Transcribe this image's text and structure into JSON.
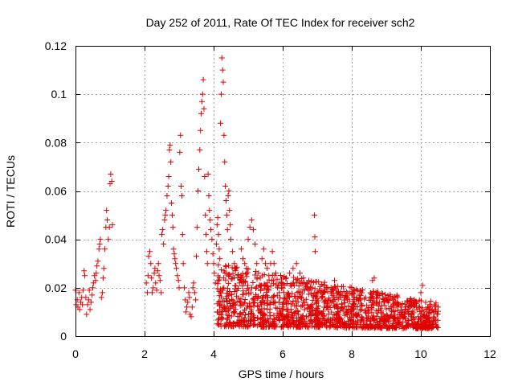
{
  "chart_data": {
    "type": "scatter",
    "title": "Day 252 of 2011, Rate Of TEC Index for receiver sch2",
    "xlabel": "GPS time / hours",
    "ylabel": "ROTI / TECUs",
    "xlim": [
      0,
      12
    ],
    "ylim": [
      0,
      0.12
    ],
    "xticks": [
      0,
      2,
      4,
      6,
      8,
      10,
      12
    ],
    "yticks": [
      0,
      0.02,
      0.04,
      0.06,
      0.08,
      0.1,
      0.12
    ],
    "xtick_labels": [
      "0",
      "2",
      "4",
      "6",
      "8",
      "10",
      "12"
    ],
    "ytick_labels": [
      "0",
      "0.02",
      "0.04",
      "0.06",
      "0.08",
      "0.1",
      "0.12"
    ],
    "grid": true,
    "marker": "+",
    "color": "#e00000",
    "points": [
      [
        0.0,
        0.019
      ],
      [
        0.02,
        0.013
      ],
      [
        0.05,
        0.015
      ],
      [
        0.07,
        0.012
      ],
      [
        0.1,
        0.018
      ],
      [
        0.12,
        0.011
      ],
      [
        0.15,
        0.014
      ],
      [
        0.18,
        0.016
      ],
      [
        0.2,
        0.013
      ],
      [
        0.22,
        0.019
      ],
      [
        0.25,
        0.027
      ],
      [
        0.27,
        0.025
      ],
      [
        0.3,
        0.016
      ],
      [
        0.32,
        0.009
      ],
      [
        0.35,
        0.013
      ],
      [
        0.38,
        0.015
      ],
      [
        0.4,
        0.019
      ],
      [
        0.42,
        0.011
      ],
      [
        0.45,
        0.014
      ],
      [
        0.48,
        0.017
      ],
      [
        0.5,
        0.02
      ],
      [
        0.52,
        0.022
      ],
      [
        0.55,
        0.025
      ],
      [
        0.58,
        0.023
      ],
      [
        0.6,
        0.026
      ],
      [
        0.62,
        0.029
      ],
      [
        0.65,
        0.031
      ],
      [
        0.68,
        0.036
      ],
      [
        0.7,
        0.038
      ],
      [
        0.72,
        0.04
      ],
      [
        0.75,
        0.016
      ],
      [
        0.78,
        0.018
      ],
      [
        0.8,
        0.024
      ],
      [
        0.82,
        0.028
      ],
      [
        0.85,
        0.036
      ],
      [
        0.88,
        0.045
      ],
      [
        0.9,
        0.052
      ],
      [
        0.92,
        0.048
      ],
      [
        0.95,
        0.04
      ],
      [
        0.98,
        0.045
      ],
      [
        1.0,
        0.063
      ],
      [
        1.02,
        0.067
      ],
      [
        1.05,
        0.064
      ],
      [
        1.07,
        0.046
      ],
      [
        2.05,
        0.022
      ],
      [
        2.08,
        0.018
      ],
      [
        2.1,
        0.025
      ],
      [
        2.12,
        0.033
      ],
      [
        2.15,
        0.035
      ],
      [
        2.18,
        0.03
      ],
      [
        2.2,
        0.024
      ],
      [
        2.22,
        0.018
      ],
      [
        2.25,
        0.02
      ],
      [
        2.28,
        0.026
      ],
      [
        2.3,
        0.028
      ],
      [
        2.32,
        0.022
      ],
      [
        2.35,
        0.019
      ],
      [
        2.38,
        0.027
      ],
      [
        2.4,
        0.03
      ],
      [
        2.42,
        0.025
      ],
      [
        2.45,
        0.023
      ],
      [
        2.48,
        0.018
      ],
      [
        2.5,
        0.042
      ],
      [
        2.52,
        0.044
      ],
      [
        2.55,
        0.038
      ],
      [
        2.58,
        0.048
      ],
      [
        2.6,
        0.05
      ],
      [
        2.62,
        0.052
      ],
      [
        2.65,
        0.058
      ],
      [
        2.68,
        0.062
      ],
      [
        2.7,
        0.066
      ],
      [
        2.72,
        0.077
      ],
      [
        2.74,
        0.079
      ],
      [
        2.76,
        0.072
      ],
      [
        2.78,
        0.055
      ],
      [
        2.8,
        0.05
      ],
      [
        2.82,
        0.045
      ],
      [
        2.84,
        0.036
      ],
      [
        2.86,
        0.034
      ],
      [
        2.88,
        0.032
      ],
      [
        2.9,
        0.03
      ],
      [
        2.92,
        0.028
      ],
      [
        2.95,
        0.025
      ],
      [
        2.98,
        0.023
      ],
      [
        3.0,
        0.02
      ],
      [
        3.02,
        0.076
      ],
      [
        3.04,
        0.083
      ],
      [
        3.06,
        0.062
      ],
      [
        3.08,
        0.058
      ],
      [
        3.1,
        0.042
      ],
      [
        3.12,
        0.03
      ],
      [
        3.15,
        0.02
      ],
      [
        3.18,
        0.015
      ],
      [
        3.2,
        0.01
      ],
      [
        3.22,
        0.012
      ],
      [
        3.25,
        0.014
      ],
      [
        3.28,
        0.018
      ],
      [
        3.3,
        0.016
      ],
      [
        3.32,
        0.009
      ],
      [
        3.35,
        0.008
      ],
      [
        3.38,
        0.012
      ],
      [
        3.4,
        0.02
      ],
      [
        3.42,
        0.022
      ],
      [
        3.45,
        0.018
      ],
      [
        3.48,
        0.015
      ],
      [
        3.5,
        0.033
      ],
      [
        3.52,
        0.045
      ],
      [
        3.55,
        0.06
      ],
      [
        3.57,
        0.069
      ],
      [
        3.6,
        0.077
      ],
      [
        3.62,
        0.085
      ],
      [
        3.64,
        0.092
      ],
      [
        3.66,
        0.097
      ],
      [
        3.68,
        0.1
      ],
      [
        3.7,
        0.106
      ],
      [
        3.72,
        0.094
      ],
      [
        3.74,
        0.066
      ],
      [
        3.76,
        0.05
      ],
      [
        3.78,
        0.042
      ],
      [
        3.8,
        0.035
      ],
      [
        3.82,
        0.03
      ],
      [
        3.84,
        0.067
      ],
      [
        3.86,
        0.058
      ],
      [
        3.88,
        0.052
      ],
      [
        3.9,
        0.048
      ],
      [
        3.92,
        0.044
      ],
      [
        3.95,
        0.04
      ],
      [
        3.98,
        0.034
      ],
      [
        4.0,
        0.03
      ],
      [
        4.02,
        0.026
      ],
      [
        4.05,
        0.022
      ],
      [
        4.08,
        0.038
      ],
      [
        4.1,
        0.046
      ],
      [
        4.12,
        0.049
      ],
      [
        4.14,
        0.042
      ],
      [
        4.16,
        0.036
      ],
      [
        4.18,
        0.032
      ],
      [
        4.2,
        0.088
      ],
      [
        4.22,
        0.1
      ],
      [
        4.24,
        0.115
      ],
      [
        4.26,
        0.11
      ],
      [
        4.28,
        0.105
      ],
      [
        4.3,
        0.083
      ],
      [
        4.32,
        0.072
      ],
      [
        4.34,
        0.062
      ],
      [
        4.36,
        0.056
      ],
      [
        4.38,
        0.05
      ],
      [
        4.4,
        0.044
      ],
      [
        4.42,
        0.058
      ],
      [
        4.44,
        0.06
      ],
      [
        4.46,
        0.052
      ],
      [
        4.48,
        0.046
      ],
      [
        4.5,
        0.04
      ],
      [
        4.55,
        0.035
      ],
      [
        4.6,
        0.03
      ],
      [
        4.65,
        0.028
      ],
      [
        4.7,
        0.025
      ],
      [
        4.75,
        0.022
      ],
      [
        4.8,
        0.036
      ],
      [
        4.85,
        0.032
      ],
      [
        4.9,
        0.03
      ],
      [
        4.95,
        0.028
      ],
      [
        5.0,
        0.04
      ],
      [
        5.05,
        0.045
      ],
      [
        5.1,
        0.048
      ],
      [
        5.15,
        0.044
      ],
      [
        5.2,
        0.038
      ],
      [
        5.25,
        0.03
      ],
      [
        5.3,
        0.026
      ],
      [
        5.35,
        0.024
      ],
      [
        5.4,
        0.032
      ],
      [
        5.45,
        0.036
      ],
      [
        5.5,
        0.03
      ],
      [
        5.55,
        0.028
      ],
      [
        5.6,
        0.025
      ],
      [
        5.65,
        0.03
      ],
      [
        5.7,
        0.035
      ],
      [
        5.75,
        0.03
      ],
      [
        5.8,
        0.026
      ],
      [
        5.85,
        0.02
      ],
      [
        5.9,
        0.018
      ],
      [
        5.95,
        0.022
      ],
      [
        6.0,
        0.02
      ],
      [
        6.1,
        0.024
      ],
      [
        6.2,
        0.026
      ],
      [
        6.3,
        0.028
      ],
      [
        6.4,
        0.03
      ],
      [
        6.5,
        0.026
      ],
      [
        6.6,
        0.024
      ],
      [
        6.7,
        0.022
      ],
      [
        6.8,
        0.02
      ],
      [
        6.92,
        0.05
      ],
      [
        6.93,
        0.041
      ],
      [
        6.94,
        0.035
      ],
      [
        7.0,
        0.018
      ],
      [
        7.2,
        0.021
      ],
      [
        7.4,
        0.02
      ],
      [
        7.5,
        0.023
      ],
      [
        7.6,
        0.018
      ],
      [
        7.8,
        0.016
      ],
      [
        8.0,
        0.017
      ],
      [
        8.2,
        0.015
      ],
      [
        8.4,
        0.016
      ],
      [
        8.6,
        0.023
      ],
      [
        8.65,
        0.024
      ],
      [
        8.8,
        0.014
      ],
      [
        9.0,
        0.016
      ],
      [
        9.2,
        0.015
      ],
      [
        9.4,
        0.013
      ],
      [
        9.6,
        0.014
      ],
      [
        9.8,
        0.015
      ],
      [
        10.0,
        0.018
      ],
      [
        10.05,
        0.021
      ],
      [
        10.2,
        0.012
      ],
      [
        10.4,
        0.013
      ],
      [
        10.5,
        0.012
      ]
    ],
    "band": {
      "x_start": 4.1,
      "x_end": 10.5,
      "y_min_start": 0.004,
      "y_min_end": 0.003,
      "y_max_start": 0.03,
      "y_max_end": 0.014
    }
  }
}
